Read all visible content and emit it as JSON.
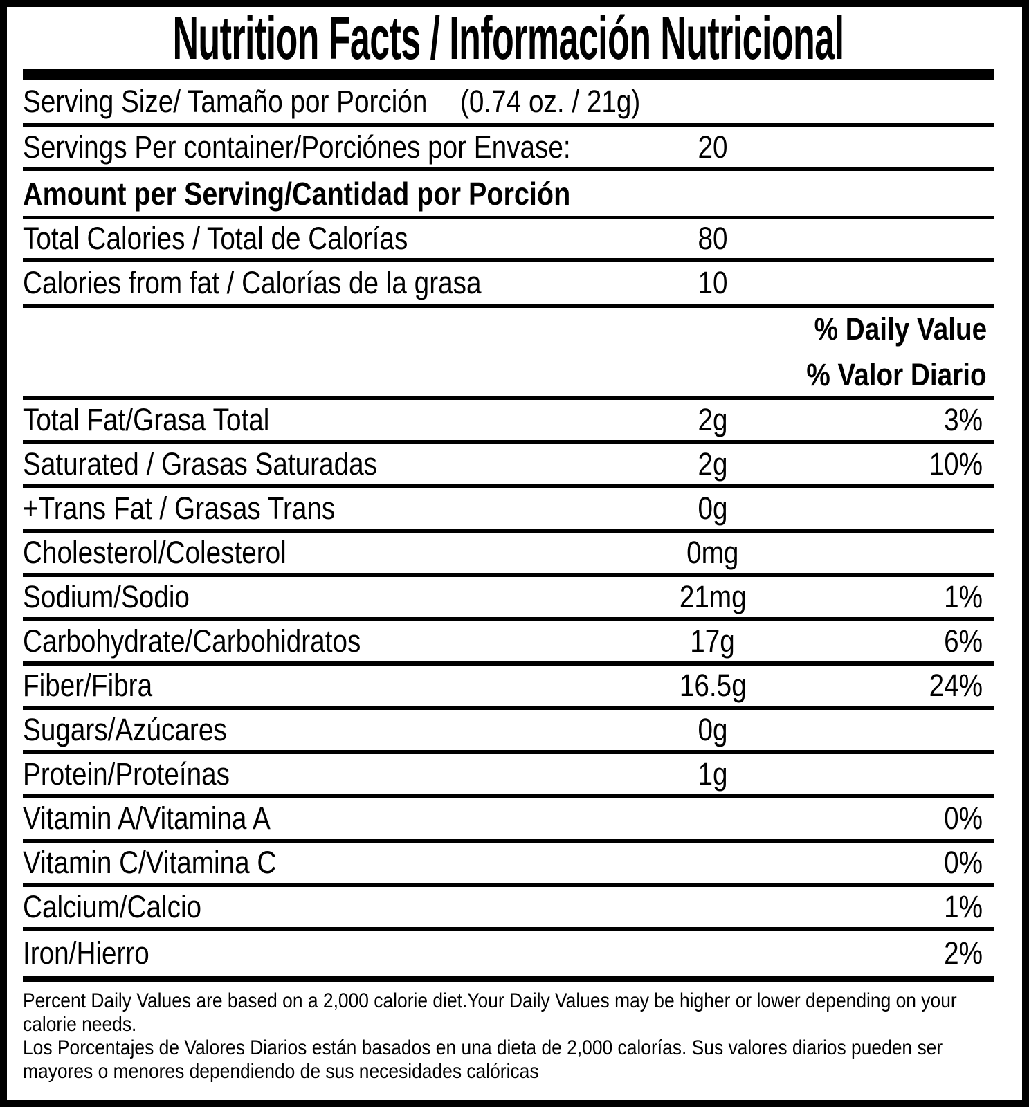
{
  "title": "Nutrition Facts / Información Nutricional",
  "serving": {
    "label": "Serving Size/ Tamaño por Porción",
    "value": "(0.74 oz. / 21g)"
  },
  "servings_per_container": {
    "label": "Servings Per container/Porciónes por Envase:",
    "value": "20"
  },
  "amount_header": "Amount per Serving/Cantidad por Porción",
  "calories_rows": [
    {
      "label": "Total Calories / Total de Calorías",
      "value": "80"
    },
    {
      "label": "Calories from fat / Calorías de la grasa",
      "value": "10"
    }
  ],
  "daily_value_header": {
    "line1": "% Daily Value",
    "line2": "% Valor Diario"
  },
  "nutrients": [
    {
      "label": "Total Fat/Grasa Total",
      "value": "2g",
      "dv": "3%"
    },
    {
      "label": "Saturated / Grasas Saturadas",
      "value": "2g",
      "dv": "10%"
    },
    {
      "label": "+Trans Fat / Grasas Trans",
      "value": "0g",
      "dv": ""
    },
    {
      "label": "Cholesterol/Colesterol",
      "value": "0mg",
      "dv": ""
    },
    {
      "label": "Sodium/Sodio",
      "value": "21mg",
      "dv": "1%"
    },
    {
      "label": "Carbohydrate/Carbohidratos",
      "value": "17g",
      "dv": "6%"
    },
    {
      "label": "Fiber/Fibra",
      "value": "16.5g",
      "dv": "24%"
    },
    {
      "label": "Sugars/Azúcares",
      "value": "0g",
      "dv": ""
    },
    {
      "label": "Protein/Proteínas",
      "value": "1g",
      "dv": ""
    },
    {
      "label": "Vitamin A/Vitamina A",
      "value": "",
      "dv": "0%"
    },
    {
      "label": "Vitamin C/Vitamina C",
      "value": "",
      "dv": "0%"
    },
    {
      "label": "Calcium/Calcio",
      "value": "",
      "dv": "1%"
    },
    {
      "label": "Iron/Hierro",
      "value": "",
      "dv": "2%"
    }
  ],
  "footnote_en": "Percent Daily Values are based on a 2,000 calorie diet.Your Daily Values may be higher or lower depending on your\ncalorie needs.",
  "footnote_es": "Los Porcentajes de Valores Diarios están basados en una dieta de 2,000 calorías. Sus valores diarios pueden ser\nmayores o menores dependiendo de sus necesidades calóricas",
  "colors": {
    "text": "#000000",
    "background": "#ffffff"
  }
}
